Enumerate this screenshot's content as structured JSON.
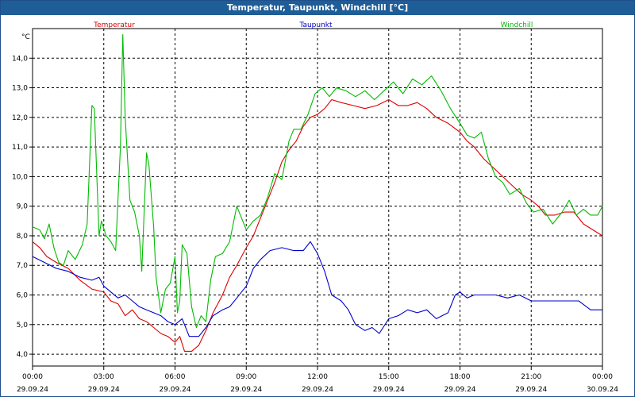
{
  "window": {
    "title": "Temperatur, Taupunkt, Windchill [°C]"
  },
  "chart_data": {
    "type": "line",
    "title": "Temperatur, Taupunkt, Windchill [°C]",
    "ylabel": "°C",
    "ylim": [
      3.6,
      15.0
    ],
    "yticks": [
      "4,0",
      "5,0",
      "6,0",
      "7,0",
      "8,0",
      "9,0",
      "10,0",
      "11,0",
      "12,0",
      "13,0",
      "14,0"
    ],
    "xlim": [
      0,
      24
    ],
    "xticks": [
      {
        "time": "00:00",
        "date": "29.09.24",
        "h": 0
      },
      {
        "time": "03:00",
        "date": "29.09.24",
        "h": 3
      },
      {
        "time": "06:00",
        "date": "29.09.24",
        "h": 6
      },
      {
        "time": "09:00",
        "date": "29.09.24",
        "h": 9
      },
      {
        "time": "12:00",
        "date": "29.09.24",
        "h": 12
      },
      {
        "time": "15:00",
        "date": "29.09.24",
        "h": 15
      },
      {
        "time": "18:00",
        "date": "29.09.24",
        "h": 18
      },
      {
        "time": "21:00",
        "date": "29.09.24",
        "h": 21
      },
      {
        "time": "00:00",
        "date": "30.09.24",
        "h": 24
      }
    ],
    "grid": true,
    "legend_position": "top",
    "series": [
      {
        "name": "Temperatur",
        "color": "#dd0000",
        "points": [
          [
            0,
            7.8
          ],
          [
            0.3,
            7.6
          ],
          [
            0.6,
            7.3
          ],
          [
            1,
            7.1
          ],
          [
            1.5,
            6.9
          ],
          [
            2,
            6.5
          ],
          [
            2.5,
            6.2
          ],
          [
            3,
            6.1
          ],
          [
            3.3,
            5.8
          ],
          [
            3.6,
            5.7
          ],
          [
            3.9,
            5.3
          ],
          [
            4.2,
            5.5
          ],
          [
            4.5,
            5.2
          ],
          [
            4.8,
            5.1
          ],
          [
            5.1,
            4.9
          ],
          [
            5.4,
            4.7
          ],
          [
            5.7,
            4.6
          ],
          [
            6,
            4.4
          ],
          [
            6.2,
            4.6
          ],
          [
            6.4,
            4.1
          ],
          [
            6.7,
            4.1
          ],
          [
            7,
            4.3
          ],
          [
            7.3,
            4.8
          ],
          [
            7.6,
            5.4
          ],
          [
            8,
            6.0
          ],
          [
            8.3,
            6.6
          ],
          [
            8.6,
            7.0
          ],
          [
            9,
            7.6
          ],
          [
            9.3,
            8.0
          ],
          [
            9.6,
            8.6
          ],
          [
            9.9,
            9.2
          ],
          [
            10.2,
            9.8
          ],
          [
            10.5,
            10.5
          ],
          [
            10.8,
            10.9
          ],
          [
            11.1,
            11.2
          ],
          [
            11.4,
            11.7
          ],
          [
            11.7,
            12.0
          ],
          [
            12,
            12.1
          ],
          [
            12.3,
            12.3
          ],
          [
            12.6,
            12.6
          ],
          [
            13,
            12.5
          ],
          [
            13.5,
            12.4
          ],
          [
            14,
            12.3
          ],
          [
            14.5,
            12.4
          ],
          [
            15,
            12.6
          ],
          [
            15.4,
            12.4
          ],
          [
            15.8,
            12.4
          ],
          [
            16.2,
            12.5
          ],
          [
            16.6,
            12.3
          ],
          [
            17,
            12.0
          ],
          [
            17.5,
            11.8
          ],
          [
            18,
            11.5
          ],
          [
            18.3,
            11.2
          ],
          [
            18.6,
            11.0
          ],
          [
            19,
            10.6
          ],
          [
            19.4,
            10.3
          ],
          [
            19.8,
            10.0
          ],
          [
            20.2,
            9.7
          ],
          [
            20.6,
            9.4
          ],
          [
            21,
            9.2
          ],
          [
            21.3,
            9.0
          ],
          [
            21.6,
            8.7
          ],
          [
            22,
            8.7
          ],
          [
            22.4,
            8.8
          ],
          [
            22.8,
            8.8
          ],
          [
            23.2,
            8.4
          ],
          [
            23.6,
            8.2
          ],
          [
            24,
            8.0
          ]
        ]
      },
      {
        "name": "Taupunkt",
        "color": "#0000cc",
        "points": [
          [
            0,
            7.3
          ],
          [
            0.5,
            7.1
          ],
          [
            1,
            6.9
          ],
          [
            1.5,
            6.8
          ],
          [
            2,
            6.6
          ],
          [
            2.5,
            6.5
          ],
          [
            2.8,
            6.6
          ],
          [
            3,
            6.3
          ],
          [
            3.3,
            6.1
          ],
          [
            3.6,
            5.9
          ],
          [
            3.9,
            6.0
          ],
          [
            4.2,
            5.8
          ],
          [
            4.5,
            5.6
          ],
          [
            4.8,
            5.5
          ],
          [
            5.1,
            5.4
          ],
          [
            5.4,
            5.3
          ],
          [
            5.7,
            5.1
          ],
          [
            6,
            5.0
          ],
          [
            6.3,
            5.2
          ],
          [
            6.6,
            4.6
          ],
          [
            7,
            4.6
          ],
          [
            7.3,
            4.9
          ],
          [
            7.6,
            5.3
          ],
          [
            8,
            5.5
          ],
          [
            8.3,
            5.6
          ],
          [
            8.6,
            5.9
          ],
          [
            9,
            6.3
          ],
          [
            9.3,
            6.9
          ],
          [
            9.6,
            7.2
          ],
          [
            10,
            7.5
          ],
          [
            10.5,
            7.6
          ],
          [
            11,
            7.5
          ],
          [
            11.4,
            7.5
          ],
          [
            11.7,
            7.8
          ],
          [
            12,
            7.4
          ],
          [
            12.3,
            6.8
          ],
          [
            12.6,
            6.0
          ],
          [
            13,
            5.8
          ],
          [
            13.3,
            5.5
          ],
          [
            13.6,
            5.0
          ],
          [
            14,
            4.8
          ],
          [
            14.3,
            4.9
          ],
          [
            14.6,
            4.7
          ],
          [
            15,
            5.2
          ],
          [
            15.4,
            5.3
          ],
          [
            15.8,
            5.5
          ],
          [
            16.2,
            5.4
          ],
          [
            16.6,
            5.5
          ],
          [
            17,
            5.2
          ],
          [
            17.5,
            5.4
          ],
          [
            17.8,
            6.0
          ],
          [
            18,
            6.1
          ],
          [
            18.3,
            5.9
          ],
          [
            18.6,
            6.0
          ],
          [
            19,
            6.0
          ],
          [
            19.5,
            6.0
          ],
          [
            20,
            5.9
          ],
          [
            20.5,
            6.0
          ],
          [
            21,
            5.8
          ],
          [
            21.5,
            5.8
          ],
          [
            22,
            5.8
          ],
          [
            22.5,
            5.8
          ],
          [
            23,
            5.8
          ],
          [
            23.5,
            5.5
          ],
          [
            24,
            5.5
          ]
        ]
      },
      {
        "name": "Windchill",
        "color": "#00bb00",
        "points": [
          [
            0,
            8.3
          ],
          [
            0.3,
            8.2
          ],
          [
            0.5,
            7.9
          ],
          [
            0.7,
            8.4
          ],
          [
            0.9,
            7.6
          ],
          [
            1.1,
            7.1
          ],
          [
            1.3,
            7.0
          ],
          [
            1.5,
            7.5
          ],
          [
            1.8,
            7.2
          ],
          [
            2.1,
            7.7
          ],
          [
            2.3,
            8.4
          ],
          [
            2.5,
            12.4
          ],
          [
            2.6,
            12.3
          ],
          [
            2.8,
            8.0
          ],
          [
            2.9,
            8.5
          ],
          [
            3.1,
            8.0
          ],
          [
            3.3,
            7.8
          ],
          [
            3.5,
            7.5
          ],
          [
            3.7,
            11.0
          ],
          [
            3.8,
            14.8
          ],
          [
            3.9,
            12.0
          ],
          [
            4.1,
            9.2
          ],
          [
            4.3,
            8.8
          ],
          [
            4.5,
            8.0
          ],
          [
            4.6,
            6.8
          ],
          [
            4.8,
            10.8
          ],
          [
            4.9,
            10.4
          ],
          [
            5.1,
            8.3
          ],
          [
            5.2,
            6.6
          ],
          [
            5.4,
            5.4
          ],
          [
            5.6,
            6.2
          ],
          [
            5.8,
            6.4
          ],
          [
            6.0,
            7.3
          ],
          [
            6.1,
            5.4
          ],
          [
            6.2,
            5.8
          ],
          [
            6.3,
            7.7
          ],
          [
            6.5,
            7.4
          ],
          [
            6.7,
            5.6
          ],
          [
            6.9,
            4.9
          ],
          [
            7.1,
            5.3
          ],
          [
            7.3,
            5.1
          ],
          [
            7.5,
            6.5
          ],
          [
            7.7,
            7.3
          ],
          [
            8.0,
            7.4
          ],
          [
            8.3,
            7.8
          ],
          [
            8.6,
            9.0
          ],
          [
            8.8,
            8.6
          ],
          [
            9.0,
            8.2
          ],
          [
            9.3,
            8.5
          ],
          [
            9.6,
            8.7
          ],
          [
            9.9,
            9.3
          ],
          [
            10.2,
            10.1
          ],
          [
            10.5,
            9.9
          ],
          [
            10.8,
            11.2
          ],
          [
            11.0,
            11.6
          ],
          [
            11.3,
            11.6
          ],
          [
            11.6,
            12.1
          ],
          [
            11.9,
            12.8
          ],
          [
            12.2,
            13.0
          ],
          [
            12.5,
            12.7
          ],
          [
            12.8,
            13.0
          ],
          [
            13.2,
            12.9
          ],
          [
            13.6,
            12.7
          ],
          [
            14.0,
            12.9
          ],
          [
            14.4,
            12.6
          ],
          [
            14.8,
            12.9
          ],
          [
            15.2,
            13.2
          ],
          [
            15.6,
            12.8
          ],
          [
            16.0,
            13.3
          ],
          [
            16.4,
            13.1
          ],
          [
            16.8,
            13.4
          ],
          [
            17.2,
            12.9
          ],
          [
            17.6,
            12.3
          ],
          [
            18.0,
            11.8
          ],
          [
            18.3,
            11.4
          ],
          [
            18.6,
            11.3
          ],
          [
            18.9,
            11.5
          ],
          [
            19.2,
            10.6
          ],
          [
            19.5,
            10.0
          ],
          [
            19.8,
            9.8
          ],
          [
            20.1,
            9.4
          ],
          [
            20.5,
            9.6
          ],
          [
            20.8,
            9.1
          ],
          [
            21.1,
            8.8
          ],
          [
            21.5,
            8.9
          ],
          [
            21.9,
            8.4
          ],
          [
            22.3,
            8.8
          ],
          [
            22.6,
            9.2
          ],
          [
            22.9,
            8.7
          ],
          [
            23.2,
            8.9
          ],
          [
            23.5,
            8.7
          ],
          [
            23.8,
            8.7
          ],
          [
            24,
            9.0
          ]
        ]
      }
    ]
  }
}
